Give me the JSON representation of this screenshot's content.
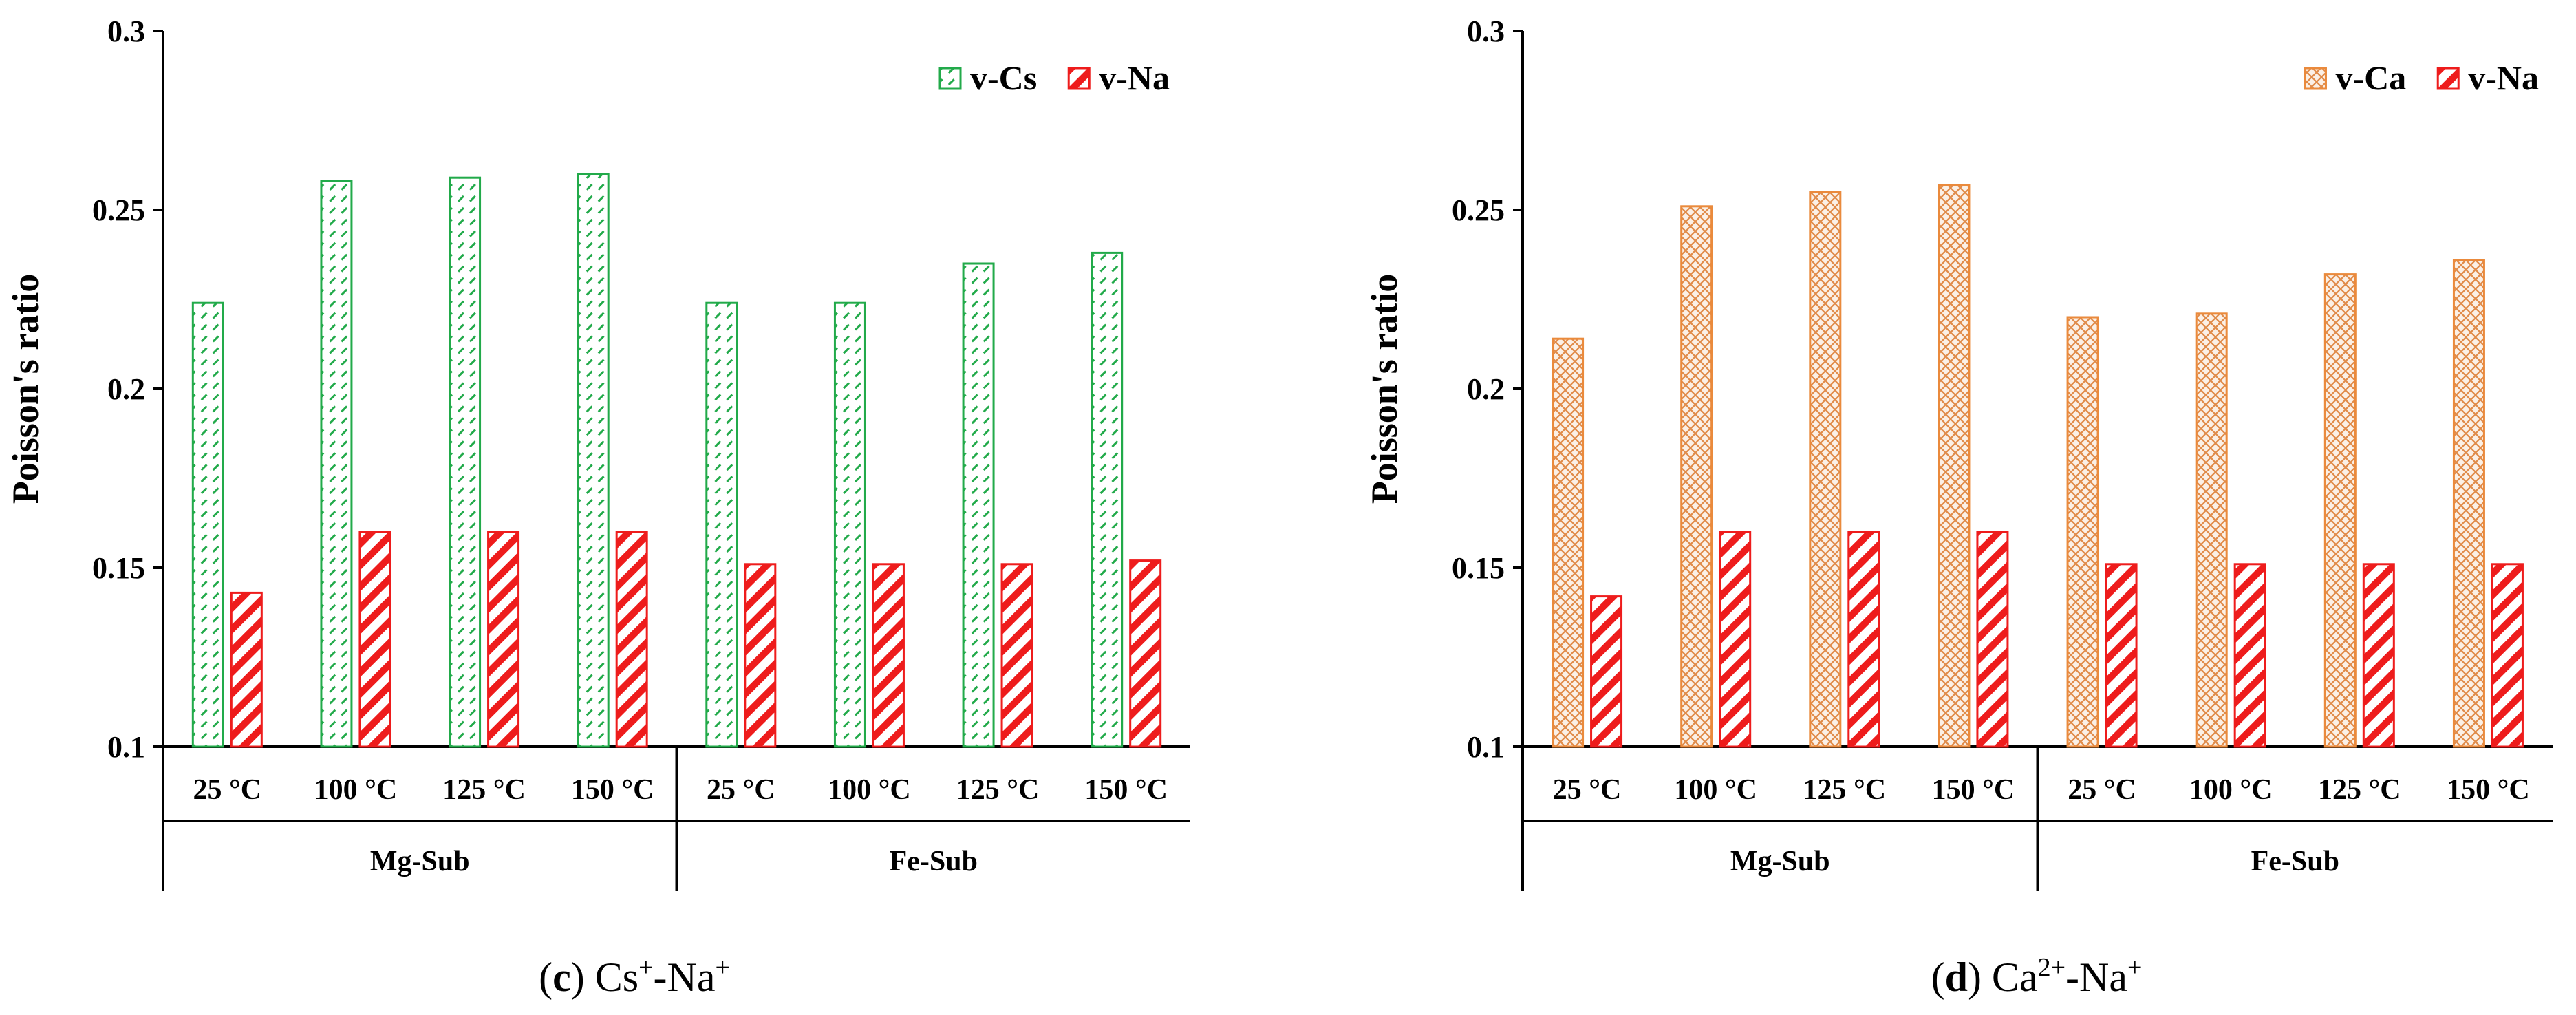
{
  "chart_data": [
    {
      "type": "bar",
      "panel_letter": "c",
      "caption_parts": [
        {
          "text": "Cs",
          "sup": false
        },
        {
          "text": "+",
          "sup": true
        },
        {
          "text": "-Na",
          "sup": false
        },
        {
          "text": "+",
          "sup": true
        }
      ],
      "ylabel": "Poisson's ratio",
      "ylim": [
        0.1,
        0.3
      ],
      "yticks": [
        "0.1",
        "0.15",
        "0.2",
        "0.25",
        "0.3"
      ],
      "categories": [
        "25 °C",
        "100 °C",
        "125 °C",
        "150 °C",
        "25 °C",
        "100 °C",
        "125 °C",
        "150 °C"
      ],
      "groups": [
        {
          "label": "Mg-Sub",
          "span": [
            0,
            3
          ]
        },
        {
          "label": "Fe-Sub",
          "span": [
            4,
            7
          ]
        }
      ],
      "legend_position": "top-right",
      "grid": false,
      "series": [
        {
          "name": "v-Cs",
          "color": "#22aa4a",
          "pattern": "dashed-diagonal",
          "values": [
            0.224,
            0.258,
            0.259,
            0.26,
            0.224,
            0.224,
            0.235,
            0.238
          ]
        },
        {
          "name": "v-Na",
          "color": "#ee1c1c",
          "pattern": "solid-diagonal",
          "values": [
            0.143,
            0.16,
            0.16,
            0.16,
            0.151,
            0.151,
            0.151,
            0.152
          ]
        }
      ]
    },
    {
      "type": "bar",
      "panel_letter": "d",
      "caption_parts": [
        {
          "text": "Ca",
          "sup": false
        },
        {
          "text": "2+",
          "sup": true
        },
        {
          "text": "-Na",
          "sup": false
        },
        {
          "text": "+",
          "sup": true
        }
      ],
      "ylabel": "Poisson's ratio",
      "ylim": [
        0.1,
        0.3
      ],
      "yticks": [
        "0.1",
        "0.15",
        "0.2",
        "0.25",
        "0.3"
      ],
      "categories": [
        "25 °C",
        "100 °C",
        "125 °C",
        "150 °C",
        "25 °C",
        "100 °C",
        "125 °C",
        "150 °C"
      ],
      "groups": [
        {
          "label": "Mg-Sub",
          "span": [
            0,
            3
          ]
        },
        {
          "label": "Fe-Sub",
          "span": [
            4,
            7
          ]
        }
      ],
      "legend_position": "top-right",
      "grid": false,
      "series": [
        {
          "name": "v-Ca",
          "color": "#ea8a3c",
          "pattern": "crosshatch",
          "values": [
            0.214,
            0.251,
            0.255,
            0.257,
            0.22,
            0.221,
            0.232,
            0.236
          ]
        },
        {
          "name": "v-Na",
          "color": "#ee1c1c",
          "pattern": "solid-diagonal",
          "values": [
            0.142,
            0.16,
            0.16,
            0.16,
            0.151,
            0.151,
            0.151,
            0.151
          ]
        }
      ]
    }
  ]
}
